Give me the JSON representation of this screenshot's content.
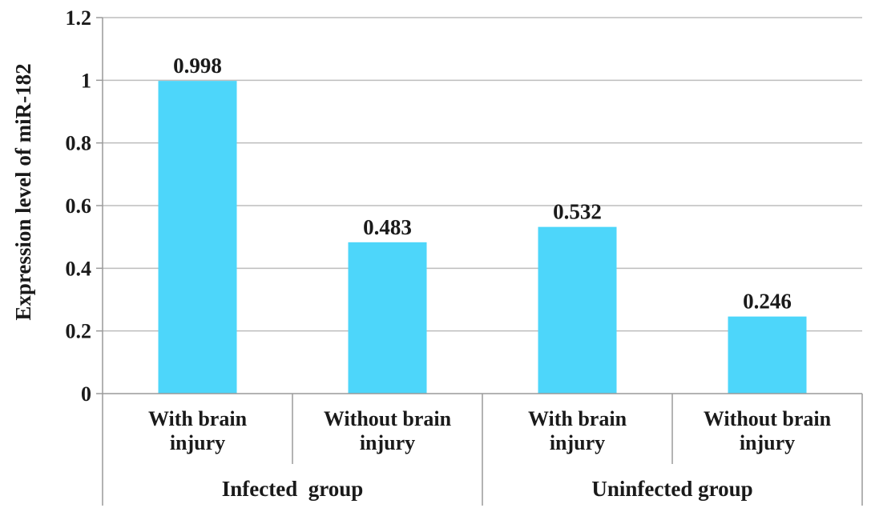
{
  "colors": {
    "bar": "#4dd6fa",
    "grid": "#bdbdbd",
    "axis": "#9a9a9a",
    "text": "#1a1a1a"
  },
  "chart_data": {
    "type": "bar",
    "title": "",
    "ylabel": "Expression level of miR-182",
    "ylim": [
      0,
      1.2
    ],
    "yticks": [
      0,
      0.2,
      0.4,
      0.6,
      0.8,
      1,
      1.2
    ],
    "ytick_labels": [
      "0",
      "0.2",
      "0.4",
      "0.6",
      "0.8",
      "1",
      "1.2"
    ],
    "grid": true,
    "legend": "none",
    "groups": [
      {
        "name": "Infected  group",
        "categories": [
          {
            "label_lines": [
              "With brain",
              "injury"
            ],
            "value": 0.998,
            "value_label": "0.998"
          },
          {
            "label_lines": [
              "Without brain",
              "injury"
            ],
            "value": 0.483,
            "value_label": "0.483"
          }
        ]
      },
      {
        "name": "Uninfected group",
        "categories": [
          {
            "label_lines": [
              "With brain",
              "injury"
            ],
            "value": 0.532,
            "value_label": "0.532"
          },
          {
            "label_lines": [
              "Without brain",
              "injury"
            ],
            "value": 0.246,
            "value_label": "0.246"
          }
        ]
      }
    ]
  }
}
